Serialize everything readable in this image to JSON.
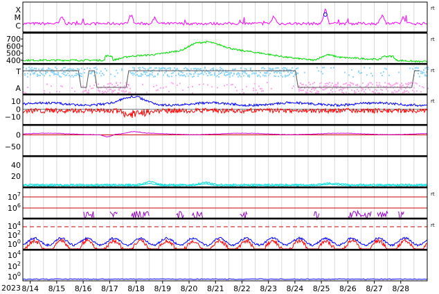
{
  "chart_data": {
    "type": "line",
    "x_year_label": "2023",
    "x_dates": [
      "8/14",
      "8/15",
      "8/16",
      "8/17",
      "8/18",
      "8/19",
      "8/20",
      "8/21",
      "8/22",
      "8/23",
      "8/24",
      "8/25",
      "8/26",
      "8/27",
      "8/28"
    ],
    "right_marker": "rt",
    "panels": [
      {
        "id": "xray_class",
        "yticks": [
          "X",
          "M",
          "C"
        ],
        "marker": "rt",
        "series": [
          {
            "color": "#ff00ff",
            "kind": "flux",
            "base": 0.32,
            "noise": 0.07,
            "spikes": [
              [
                1.2,
                0.25
              ],
              [
                3.8,
                0.3
              ],
              [
                4.7,
                0.2
              ],
              [
                9.2,
                0.28
              ],
              [
                11.15,
                0.55
              ],
              [
                13.3,
                0.35
              ],
              [
                14.1,
                0.2
              ]
            ]
          }
        ],
        "annotation": {
          "x": 11.15,
          "label": "o",
          "color": "#0000ff"
        }
      },
      {
        "id": "solar_wind_speed",
        "yticks": [
          "700",
          "600",
          "500",
          "400"
        ],
        "ylim": [
          350,
          780
        ],
        "marker": "rt",
        "series": [
          {
            "color": "#00dd00",
            "kind": "speed",
            "points": [
              [
                0,
                400
              ],
              [
                3.1,
                400
              ],
              [
                3.1,
                460
              ],
              [
                3.4,
                460
              ],
              [
                3.4,
                400
              ],
              [
                4.0,
                455
              ],
              [
                5.0,
                480
              ],
              [
                6.0,
                540
              ],
              [
                6.5,
                640
              ],
              [
                7.0,
                660
              ],
              [
                7.5,
                610
              ],
              [
                8.0,
                550
              ],
              [
                9.0,
                500
              ],
              [
                10.0,
                440
              ],
              [
                11.0,
                400
              ],
              [
                11.5,
                480
              ],
              [
                12.0,
                440
              ],
              [
                13.0,
                420
              ],
              [
                13.5,
                410
              ],
              [
                13.6,
                455
              ],
              [
                14.0,
                455
              ],
              [
                14.1,
                400
              ],
              [
                15.0,
                380
              ]
            ]
          }
        ]
      },
      {
        "id": "imf_polarity",
        "yticks": [
          "T",
          "A"
        ],
        "marker": "rt",
        "series": [
          {
            "color": "#8ed8ff",
            "kind": "scatter_top"
          },
          {
            "color": "#ffa8ee",
            "kind": "scatter_bottom"
          },
          {
            "color": "#555555",
            "kind": "step",
            "points": [
              [
                0,
                1
              ],
              [
                2.1,
                1
              ],
              [
                2.2,
                0
              ],
              [
                2.4,
                0
              ],
              [
                2.5,
                1
              ],
              [
                2.7,
                1
              ],
              [
                2.8,
                0
              ],
              [
                3.9,
                0
              ],
              [
                4.0,
                1
              ],
              [
                10.3,
                1
              ],
              [
                10.4,
                0
              ],
              [
                14.7,
                0
              ],
              [
                14.8,
                1
              ],
              [
                15.0,
                1
              ]
            ]
          }
        ]
      },
      {
        "id": "imf_components",
        "yticks": [
          "10",
          "0",
          "−10"
        ],
        "ylim": [
          -20,
          18
        ],
        "marker": "rt",
        "series": [
          {
            "color": "#0000ff",
            "kind": "bt",
            "base": 6
          },
          {
            "color": "#ff0000",
            "kind": "bz",
            "base": -2
          }
        ]
      },
      {
        "id": "proton_density",
        "yticks": [
          "0",
          "−50"
        ],
        "ylim": [
          -90,
          40
        ],
        "series": [
          {
            "color": "#cc00cc",
            "kind": "smooth",
            "base": 5
          }
        ]
      },
      {
        "id": "proton_temperature",
        "yticks": [
          "40",
          "20"
        ],
        "ylim": [
          0,
          55
        ],
        "series": [
          {
            "color": "#00dddd",
            "kind": "noisy",
            "base": 4
          }
        ]
      },
      {
        "id": "electron_flux",
        "yticks": [
          "10^7",
          "10^6"
        ],
        "marker": "rt",
        "series": [
          {
            "color": "#9900cc",
            "kind": "bursts",
            "bursts": [
              [
                2.3,
                2.7
              ],
              [
                3.3,
                3.6
              ],
              [
                4.1,
                4.8
              ],
              [
                5.8,
                6.1
              ],
              [
                6.4,
                6.8
              ],
              [
                8.2,
                8.5
              ],
              [
                11.0,
                11.2
              ],
              [
                12.3,
                13.2
              ],
              [
                13.4,
                13.8
              ],
              [
                14.2,
                14.4
              ]
            ]
          }
        ],
        "thresholds_color": "#cc0000"
      },
      {
        "id": "proton_flux",
        "yticks": [
          "10^4",
          "10^2",
          "10^0"
        ],
        "marker": "rt",
        "series": [
          {
            "color": "#0000ff",
            "kind": "diurnal_high"
          },
          {
            "color": "#ff0000",
            "kind": "diurnal_low"
          }
        ],
        "threshold": {
          "value": "10^4",
          "color": "#cc0000",
          "style": "dashed"
        }
      },
      {
        "id": "neutron_flux",
        "yticks": [
          "10^4",
          "10^2",
          "10^0"
        ],
        "series": [
          {
            "color": "#0000ff",
            "kind": "flat"
          }
        ]
      }
    ]
  }
}
